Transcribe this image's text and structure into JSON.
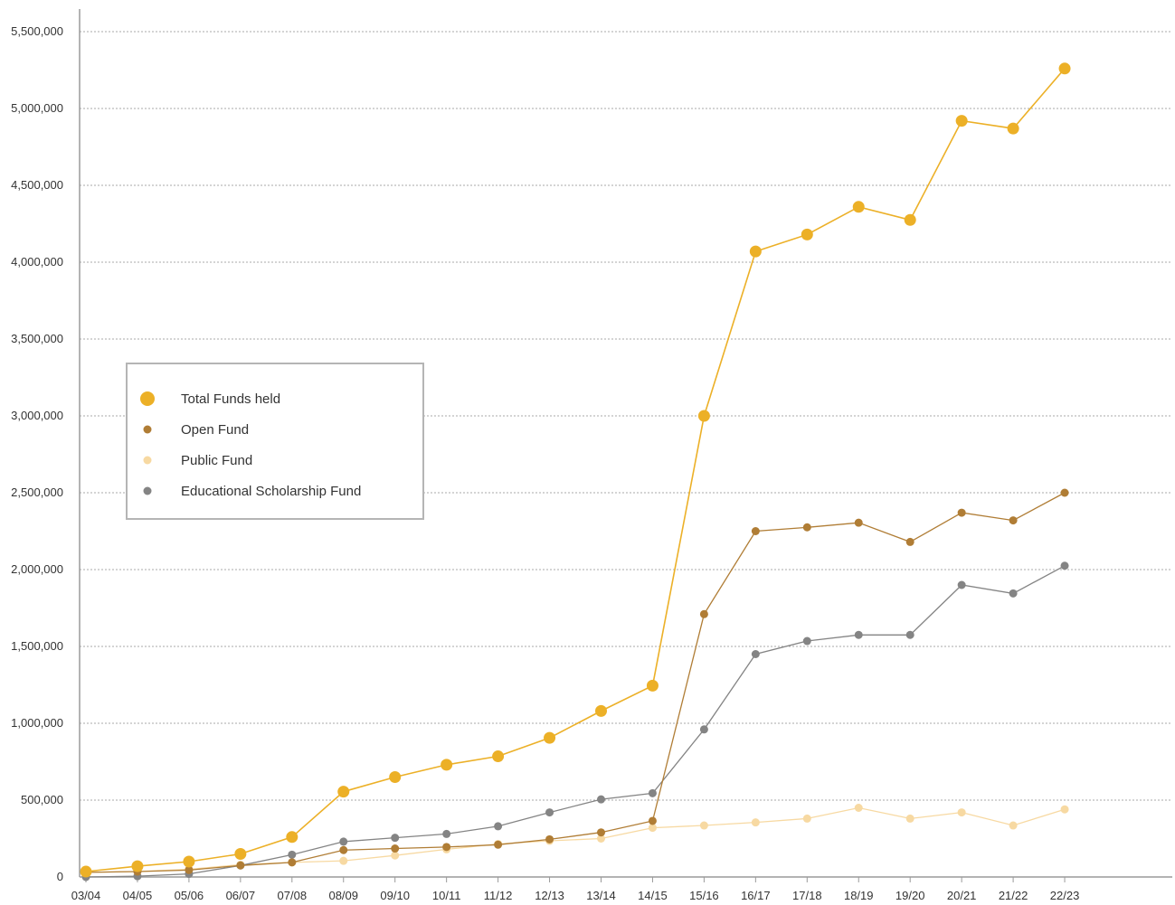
{
  "chart_data": {
    "type": "line",
    "title": "",
    "xlabel": "",
    "ylabel": "",
    "categories": [
      "03/04",
      "04/05",
      "05/06",
      "06/07",
      "07/08",
      "08/09",
      "09/10",
      "10/11",
      "11/12",
      "12/13",
      "13/14",
      "14/15",
      "15/16",
      "16/17",
      "17/18",
      "18/19",
      "19/20",
      "20/21",
      "21/22",
      "22/23"
    ],
    "ylim": [
      0,
      5500000
    ],
    "yticks": [
      0,
      500000,
      1000000,
      1500000,
      2000000,
      2500000,
      3000000,
      3500000,
      4000000,
      4500000,
      5000000,
      5500000
    ],
    "ytick_labels": [
      "0",
      "500,000",
      "1,000,000",
      "1,500,000",
      "2,000,000",
      "2,500,000",
      "3,000,000",
      "3,500,000",
      "4,000,000",
      "4,500,000",
      "5,000,000",
      "5,500,000"
    ],
    "grid": true,
    "legend_position": "left-middle",
    "series": [
      {
        "name": "Total Funds held",
        "color": "#ecb027",
        "values": [
          35000,
          70000,
          100000,
          150000,
          260000,
          555000,
          650000,
          730000,
          785000,
          905000,
          1080000,
          1245000,
          3000000,
          4070000,
          4180000,
          4360000,
          4275000,
          4920000,
          4870000,
          5260000
        ]
      },
      {
        "name": "Open Fund",
        "color": "#b07d35",
        "values": [
          30000,
          35000,
          45000,
          75000,
          95000,
          175000,
          185000,
          195000,
          210000,
          245000,
          290000,
          365000,
          1710000,
          2250000,
          2275000,
          2305000,
          2180000,
          2370000,
          2320000,
          2500000
        ]
      },
      {
        "name": "Public Fund",
        "color": "#f7d9a2",
        "values": [
          30000,
          35000,
          50000,
          80000,
          95000,
          105000,
          140000,
          180000,
          215000,
          235000,
          250000,
          320000,
          335000,
          355000,
          380000,
          450000,
          380000,
          420000,
          335000,
          440000
        ]
      },
      {
        "name": "Educational Scholarship Fund",
        "color": "#848484",
        "values": [
          0,
          5000,
          20000,
          75000,
          145000,
          230000,
          255000,
          280000,
          330000,
          420000,
          505000,
          545000,
          960000,
          1450000,
          1535000,
          1575000,
          1575000,
          1900000,
          1845000,
          2025000
        ]
      }
    ]
  }
}
